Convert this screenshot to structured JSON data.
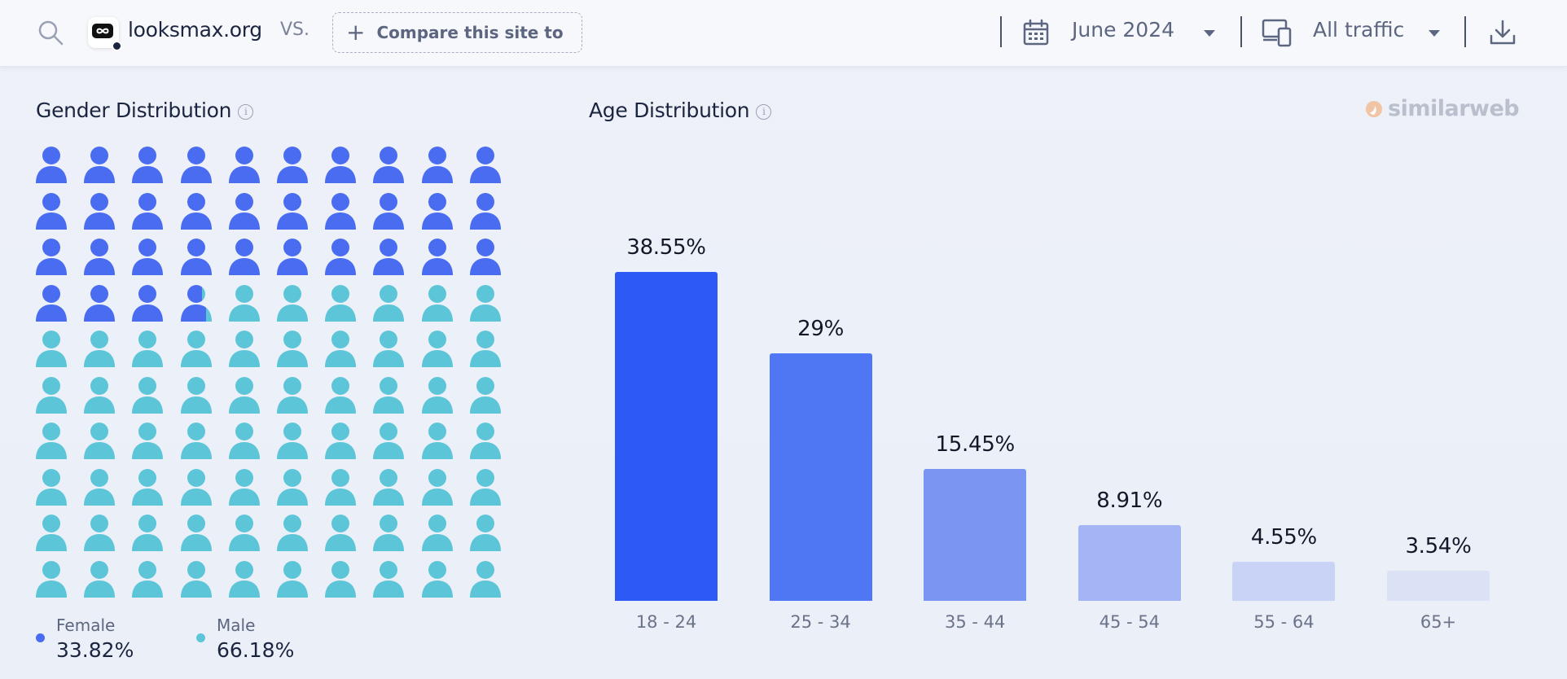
{
  "header": {
    "site_name": "looksmax.org",
    "vs_label": "VS.",
    "compare_label": "Compare this site to",
    "date_label": "June 2024",
    "traffic_label": "All traffic"
  },
  "icons": {
    "search": "search-icon",
    "calendar": "calendar-icon",
    "device": "device-icon",
    "download": "download-icon",
    "caret": "chevron-down-icon"
  },
  "gender": {
    "title": "Gender Distribution",
    "female": {
      "label": "Female",
      "value": "33.82%",
      "percent": 33.82,
      "color": "#4a6cf0"
    },
    "male": {
      "label": "Male",
      "value": "66.18%",
      "percent": 66.18,
      "color": "#5cc6d8"
    },
    "grid_total_icons": 100
  },
  "age": {
    "title": "Age Distribution"
  },
  "brand": {
    "name": "similarweb"
  },
  "chart_data": {
    "type": "bar",
    "title": "Age Distribution",
    "categories": [
      "18 - 24",
      "25 - 34",
      "35 - 44",
      "45 - 54",
      "55 - 64",
      "65+"
    ],
    "values": [
      38.55,
      29,
      15.45,
      8.91,
      4.55,
      3.54
    ],
    "value_labels": [
      "38.55%",
      "29%",
      "15.45%",
      "8.91%",
      "4.55%",
      "3.54%"
    ],
    "colors": [
      "#2d59f5",
      "#5077f3",
      "#7b95f2",
      "#a3b5f4",
      "#c9d3f5",
      "#dce2f6"
    ],
    "xlabel": "",
    "ylabel": "",
    "ylim": [
      0,
      38.55
    ],
    "grid": false
  }
}
